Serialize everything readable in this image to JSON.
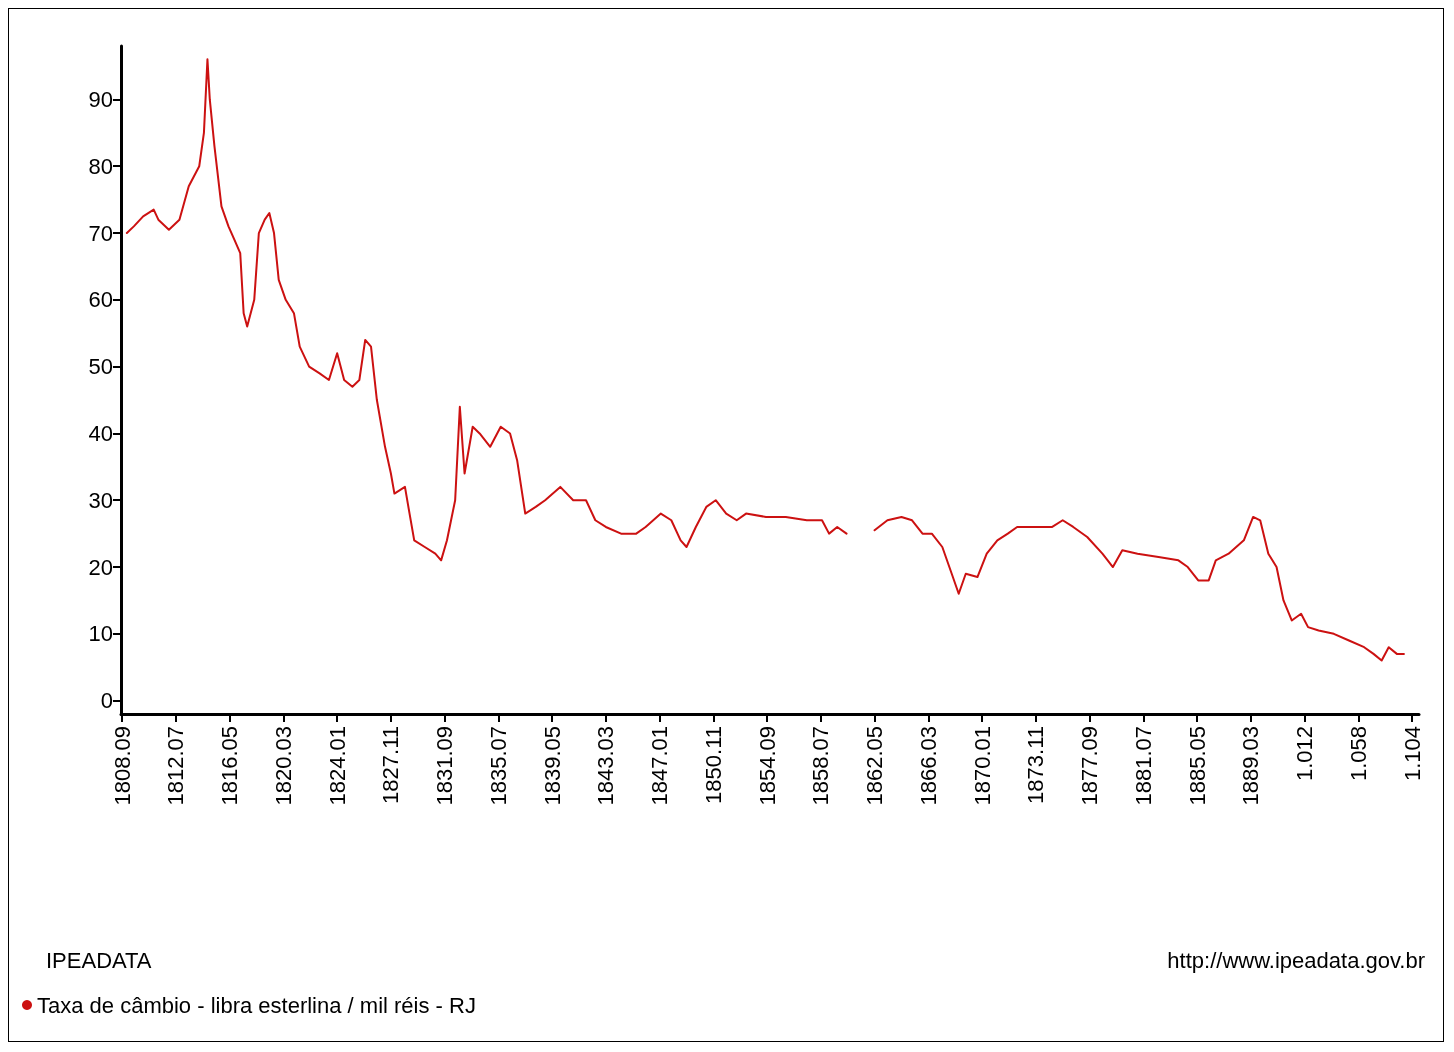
{
  "chart_data": {
    "type": "line",
    "annotations": [
      "IPEADATA",
      "http://www.ipeadata.gov.br"
    ],
    "xlim": [
      "1808-08",
      "1901-03"
    ],
    "ylim": [
      -2,
      98
    ],
    "xticks": [
      {
        "value": "1808-09",
        "label": "1808.09"
      },
      {
        "value": "1812-07",
        "label": "1812.07"
      },
      {
        "value": "1816-05",
        "label": "1816.05"
      },
      {
        "value": "1820-03",
        "label": "1820.03"
      },
      {
        "value": "1824-01",
        "label": "1824.01"
      },
      {
        "value": "1827-11",
        "label": "1827.11"
      },
      {
        "value": "1831-09",
        "label": "1831.09"
      },
      {
        "value": "1835-07",
        "label": "1835.07"
      },
      {
        "value": "1839-05",
        "label": "1839.05"
      },
      {
        "value": "1843-03",
        "label": "1843.03"
      },
      {
        "value": "1847-01",
        "label": "1847.01"
      },
      {
        "value": "1850-11",
        "label": "1850.11"
      },
      {
        "value": "1854-09",
        "label": "1854.09"
      },
      {
        "value": "1858-07",
        "label": "1858.07"
      },
      {
        "value": "1862-05",
        "label": "1862.05"
      },
      {
        "value": "1866-03",
        "label": "1866.03"
      },
      {
        "value": "1870-01",
        "label": "1870.01"
      },
      {
        "value": "1873-11",
        "label": "1873.11"
      },
      {
        "value": "1877-09",
        "label": "1877.09"
      },
      {
        "value": "1881-07",
        "label": "1881.07"
      },
      {
        "value": "1885-05",
        "label": "1885.05"
      },
      {
        "value": "1889-03",
        "label": "1889.03"
      },
      {
        "value": "1893-01",
        "label": "1.012"
      },
      {
        "value": "1896-11",
        "label": "1.058"
      },
      {
        "value": "1900-09",
        "label": "1.104"
      }
    ],
    "yticks": [
      0,
      10,
      20,
      30,
      40,
      50,
      60,
      70,
      80,
      90
    ],
    "grid": false,
    "legend": "bottom left",
    "marker": "none",
    "line_style": "solid",
    "series": [
      {
        "name": "Taxa de câmbio - libra esterlina / mil réis - RJ",
        "color": "#cc1111",
        "x": [
          "1809-01",
          "1809-07",
          "1810-03",
          "1810-12",
          "1811-04",
          "1812-01",
          "1812-10",
          "1813-06",
          "1814-03",
          "1814-07",
          "1814-10",
          "1814-12",
          "1815-04",
          "1815-10",
          "1816-04",
          "1816-09",
          "1817-02",
          "1817-05",
          "1817-08",
          "1818-02",
          "1818-06",
          "1818-11",
          "1819-03",
          "1819-07",
          "1819-11",
          "1820-05",
          "1820-12",
          "1821-05",
          "1822-01",
          "1822-10",
          "1823-06",
          "1824-01",
          "1824-07",
          "1825-02",
          "1825-08",
          "1826-01",
          "1826-06",
          "1826-11",
          "1827-06",
          "1827-11",
          "1828-02",
          "1828-11",
          "1829-03",
          "1829-07",
          "1830-04",
          "1831-01",
          "1831-06",
          "1831-11",
          "1832-06",
          "1832-10",
          "1833-02",
          "1833-09",
          "1834-03",
          "1834-12",
          "1835-09",
          "1836-05",
          "1836-11",
          "1837-06",
          "1838-03",
          "1838-11",
          "1839-12",
          "1840-11",
          "1841-10",
          "1842-06",
          "1843-03",
          "1844-04",
          "1845-05",
          "1846-01",
          "1847-02",
          "1847-11",
          "1848-07",
          "1848-12",
          "1849-08",
          "1850-05",
          "1851-01",
          "1851-10",
          "1852-07",
          "1853-03",
          "1854-08",
          "1856-01",
          "1857-07",
          "1858-08",
          "1859-02",
          "1859-09",
          "1860-05",
          "1861-03",
          "1862-05",
          "1863-04",
          "1864-04",
          "1865-01",
          "1865-10",
          "1866-06",
          "1867-03",
          "1867-11",
          "1868-05",
          "1868-11",
          "1869-09",
          "1870-05",
          "1871-02",
          "1871-11",
          "1872-07",
          "1873-12",
          "1875-01",
          "1875-10",
          "1876-07",
          "1877-07",
          "1878-08",
          "1879-05",
          "1880-01",
          "1881-02",
          "1882-08",
          "1884-01",
          "1884-09",
          "1885-06",
          "1886-03",
          "1886-09",
          "1887-08",
          "1888-09",
          "1889-05",
          "1889-11",
          "1890-06",
          "1891-01",
          "1891-07",
          "1892-02",
          "1892-10",
          "1893-04",
          "1894-01",
          "1895-02",
          "1896-03",
          "1897-04",
          "1897-12",
          "1898-07",
          "1899-01",
          "1899-08",
          "1900-02"
        ],
        "values": [
          70,
          71,
          72.5,
          73.5,
          72,
          70.5,
          72,
          77,
          80,
          85,
          96,
          90,
          83,
          74,
          71,
          69,
          67,
          58,
          56,
          60,
          70,
          72,
          73,
          70,
          63,
          60,
          58,
          53,
          50,
          49,
          48,
          52,
          48,
          47,
          48,
          54,
          53,
          45,
          38,
          34,
          31,
          32,
          28,
          24,
          23,
          22,
          21,
          24,
          30,
          44,
          34,
          41,
          40,
          38,
          41,
          40,
          36,
          28,
          29,
          30,
          32,
          30,
          30,
          27,
          26,
          25,
          25,
          26,
          28,
          27,
          24,
          23,
          26,
          29,
          30,
          28,
          27,
          28,
          27.5,
          27.5,
          27,
          27,
          25,
          26,
          25,
          null,
          25.5,
          27,
          27.5,
          27,
          25,
          25,
          23,
          19,
          16,
          19,
          18.5,
          22,
          24,
          25,
          26,
          26,
          26,
          27,
          26,
          24.5,
          22,
          20,
          22.5,
          22,
          21.5,
          21,
          20,
          18,
          18,
          21,
          22,
          24,
          27.5,
          27,
          22,
          20,
          15,
          12,
          13,
          11,
          10.5,
          10,
          9,
          8,
          7,
          6,
          8,
          7,
          7
        ]
      }
    ]
  }
}
